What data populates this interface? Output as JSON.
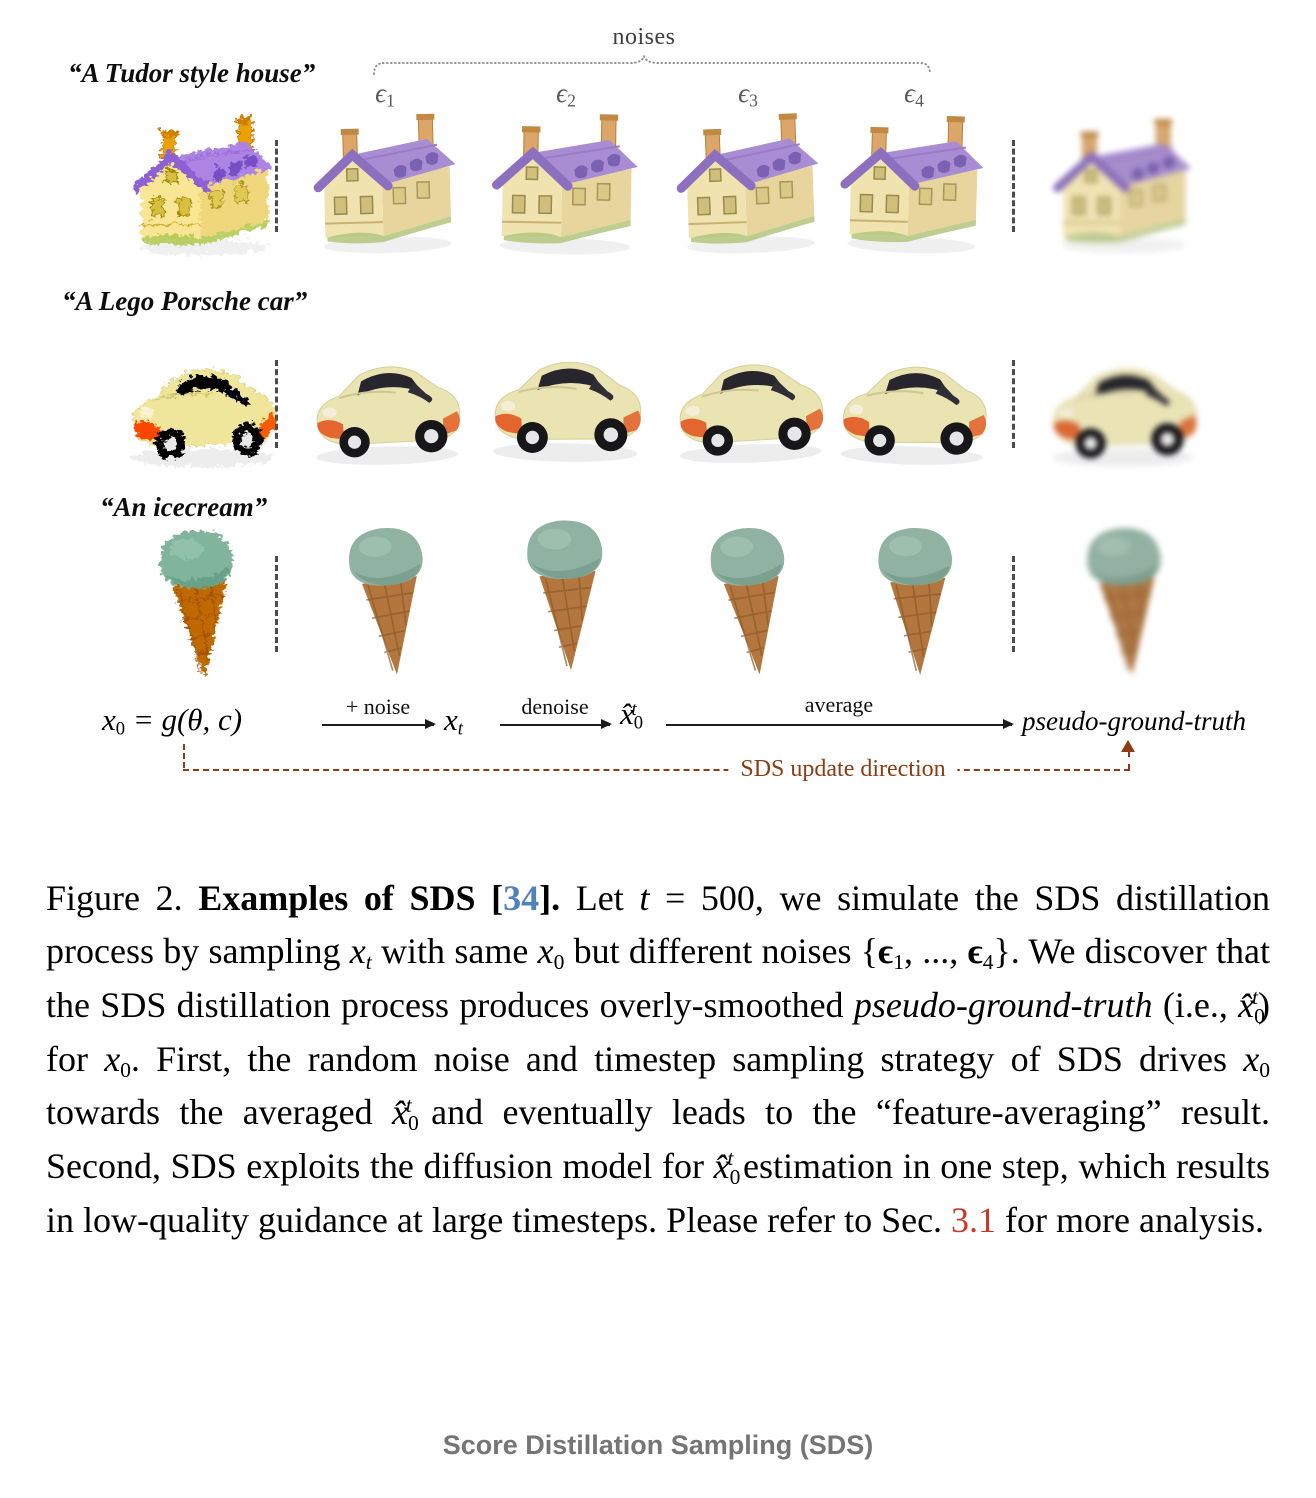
{
  "figure": {
    "noises_label": "noises",
    "epsilons": [
      {
        "segs": [
          {
            "t": "ϵ"
          },
          {
            "t": "1",
            "e": "sub"
          }
        ]
      },
      {
        "segs": [
          {
            "t": "ϵ"
          },
          {
            "t": "2",
            "e": "sub"
          }
        ]
      },
      {
        "segs": [
          {
            "t": "ϵ"
          },
          {
            "t": "3",
            "e": "sub"
          }
        ]
      },
      {
        "segs": [
          {
            "t": "ϵ"
          },
          {
            "t": "4",
            "e": "sub"
          }
        ]
      }
    ],
    "rows": [
      {
        "prompt": "“A Tudor style house”",
        "object": "tudor-house"
      },
      {
        "prompt": "“A Lego Porsche car”",
        "object": "lego-porsche-car"
      },
      {
        "prompt": "“An icecream”",
        "object": "icecream"
      }
    ],
    "flow": {
      "x0": {
        "segs": [
          {
            "t": "x"
          },
          {
            "t": "0",
            "e": "sub"
          },
          {
            "t": " = g(θ, c)"
          }
        ]
      },
      "plus_noise_label": "+ noise",
      "xt": {
        "segs": [
          {
            "t": "x"
          },
          {
            "t": "t",
            "e": "sub",
            "c": "m"
          }
        ]
      },
      "denoise_label": "denoise",
      "xhat": {
        "segs": [
          {
            "t": "x̂"
          },
          {
            "t": "0",
            "e": "sub"
          },
          {
            "t": "t",
            "e": "sup",
            "c": "m st"
          }
        ]
      },
      "average_label": "average",
      "pseudo_label": "pseudo-ground-truth",
      "sds_update_label": "SDS update direction"
    },
    "caption": {
      "segments": [
        {
          "t": "Figure 2.  "
        },
        {
          "t": "Examples of SDS [",
          "c": "b"
        },
        {
          "t": "34",
          "c": "b blue",
          "n": "citation-34-link",
          "x": true
        },
        {
          "t": "].",
          "c": "b"
        },
        {
          "t": "  Let "
        },
        {
          "t": "t",
          "c": "m"
        },
        {
          "t": " = 500, we simulate the SDS distillation process by sampling "
        },
        {
          "t": "x",
          "c": "m"
        },
        {
          "t": "t",
          "e": "sub",
          "c": "m"
        },
        {
          "t": " with same "
        },
        {
          "t": "x",
          "c": "m"
        },
        {
          "t": "0",
          "e": "sub"
        },
        {
          "t": " but different noises {"
        },
        {
          "t": "ϵ",
          "c": "b"
        },
        {
          "t": "1",
          "e": "sub"
        },
        {
          "t": ", ..., "
        },
        {
          "t": "ϵ",
          "c": "b"
        },
        {
          "t": "4",
          "e": "sub"
        },
        {
          "t": "}. We discover that the SDS distillation process produces overly-smoothed "
        },
        {
          "t": "pseudo-ground-truth",
          "c": "i"
        },
        {
          "t": " (i.e., "
        },
        {
          "t": "x̂",
          "c": "m"
        },
        {
          "t": "0",
          "e": "sub"
        },
        {
          "t": "t",
          "e": "sup",
          "c": "m st"
        },
        {
          "t": ") for "
        },
        {
          "t": "x",
          "c": "m"
        },
        {
          "t": "0",
          "e": "sub"
        },
        {
          "t": ". First, the random noise and timestep sampling strategy of SDS drives "
        },
        {
          "t": "x",
          "c": "m"
        },
        {
          "t": "0",
          "e": "sub"
        },
        {
          "t": " towards the averaged "
        },
        {
          "t": "x̂",
          "c": "m"
        },
        {
          "t": "0",
          "e": "sub"
        },
        {
          "t": "t",
          "e": "sup",
          "c": "m st"
        },
        {
          "t": " and eventually leads to the “feature-averaging” result. Second, SDS exploits the diffusion model for "
        },
        {
          "t": "x̂",
          "c": "m"
        },
        {
          "t": "0",
          "e": "sub"
        },
        {
          "t": "t",
          "e": "sup",
          "c": "m st"
        },
        {
          "t": " estimation in one step, which results in low-quality guidance at large timesteps.  Please refer to Sec. "
        },
        {
          "t": "3.1",
          "c": "red",
          "n": "section-3-1-link",
          "x": true
        },
        {
          "t": " for more analysis."
        }
      ]
    },
    "footer_label": "Score Distillation Sampling (SDS)",
    "colors": {
      "citation_blue": "#4f81bd",
      "section_red": "#cc372c",
      "sds_update_brown": "#8a3c12",
      "footer_gray": "#757575",
      "epsilon_gray": "#5a5a5a",
      "house_roof_purple": "#a98dd2",
      "house_wall_cream": "#f1e3af",
      "car_body_cream": "#eae3b2",
      "car_accent_orange": "#e2662e",
      "icecream_scoop_teal": "#90b2a2",
      "icecream_cone_brown": "#b2763e"
    }
  }
}
